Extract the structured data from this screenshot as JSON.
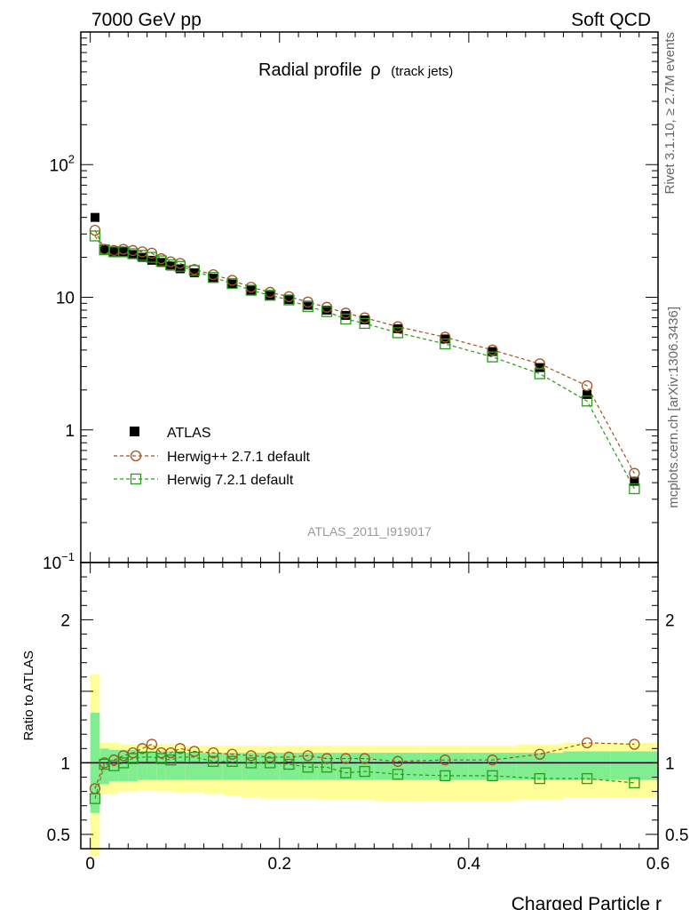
{
  "header": {
    "left": "7000 GeV pp",
    "right": "Soft QCD"
  },
  "title": {
    "main": "Radial profile",
    "symbol": "ρ",
    "suffix": "(track jets)"
  },
  "side_labels": {
    "rivet": "Rivet 3.1.10, ≥ 2.7M events",
    "mcplots": "mcplots.cern.ch [arXiv:1306.3436]"
  },
  "watermark": "ATLAS_2011_I919017",
  "legend": {
    "atlas": "ATLAS",
    "herwigpp": "Herwig++ 2.7.1 default",
    "herwig7": "Herwig 7.2.1 default"
  },
  "axes": {
    "xlabel": "Charged Particle r",
    "ratio_ylabel": "Ratio to ATLAS",
    "main_y_ticks": [
      {
        "label": "10",
        "sup": "2",
        "value": 100
      },
      {
        "label": "10",
        "sup": "",
        "value": 10
      },
      {
        "label": "1",
        "sup": "",
        "value": 1
      },
      {
        "label": "10",
        "sup": "−1",
        "value": 0.1
      }
    ],
    "ratio_y_ticks": [
      {
        "label": "2",
        "value": 2
      },
      {
        "label": "1",
        "value": 1
      },
      {
        "label": "0.5",
        "value": 0.5
      }
    ],
    "x_ticks": [
      {
        "label": "0",
        "value": 0
      },
      {
        "label": "0.2",
        "value": 0.2
      },
      {
        "label": "0.4",
        "value": 0.4
      },
      {
        "label": "0.6",
        "value": 0.6
      }
    ]
  },
  "colors": {
    "atlas": "#000000",
    "herwigpp": "#a0521e",
    "herwig7": "#2a9a1a",
    "band_inner": "#80ee90",
    "band_outer": "#ffff99"
  },
  "chart_data": {
    "type": "scatter",
    "xlim": [
      -0.01,
      0.6
    ],
    "ylim_main": [
      0.1,
      1000
    ],
    "ylim_ratio": [
      0.4,
      2.4
    ],
    "y_scale": "log",
    "x": [
      0.005,
      0.015,
      0.025,
      0.035,
      0.045,
      0.055,
      0.065,
      0.075,
      0.085,
      0.095,
      0.11,
      0.13,
      0.15,
      0.17,
      0.19,
      0.21,
      0.23,
      0.25,
      0.27,
      0.29,
      0.325,
      0.375,
      0.425,
      0.475,
      0.525,
      0.575
    ],
    "x_err": [
      0.005,
      0.005,
      0.005,
      0.005,
      0.005,
      0.005,
      0.005,
      0.005,
      0.005,
      0.005,
      0.01,
      0.01,
      0.01,
      0.01,
      0.01,
      0.01,
      0.01,
      0.01,
      0.01,
      0.01,
      0.025,
      0.025,
      0.025,
      0.025,
      0.025,
      0.025
    ],
    "series": [
      {
        "name": "ATLAS",
        "values": [
          40,
          23,
          22,
          22,
          21,
          20,
          19,
          18.3,
          17.2,
          16.4,
          15.3,
          13.9,
          12.6,
          11.3,
          10.3,
          9.6,
          8.7,
          8.0,
          7.3,
          6.75,
          5.8,
          4.85,
          3.9,
          2.95,
          1.85,
          0.41
        ],
        "ratio": [
          1,
          1,
          1,
          1,
          1,
          1,
          1,
          1,
          1,
          1,
          1,
          1,
          1,
          1,
          1,
          1,
          1,
          1,
          1,
          1,
          1,
          1,
          1,
          1,
          1,
          1
        ],
        "band_inner": [
          [
            0.65,
            1.35
          ],
          [
            0.85,
            1.1
          ],
          [
            0.87,
            1.09
          ],
          [
            0.87,
            1.09
          ],
          [
            0.87,
            1.09
          ],
          [
            0.88,
            1.08
          ],
          [
            0.88,
            1.08
          ],
          [
            0.88,
            1.08
          ],
          [
            0.88,
            1.08
          ],
          [
            0.88,
            1.08
          ],
          [
            0.88,
            1.07
          ],
          [
            0.88,
            1.07
          ],
          [
            0.88,
            1.07
          ],
          [
            0.88,
            1.07
          ],
          [
            0.88,
            1.07
          ],
          [
            0.88,
            1.07
          ],
          [
            0.88,
            1.07
          ],
          [
            0.88,
            1.07
          ],
          [
            0.88,
            1.07
          ],
          [
            0.88,
            1.07
          ],
          [
            0.88,
            1.07
          ],
          [
            0.88,
            1.07
          ],
          [
            0.88,
            1.07
          ],
          [
            0.88,
            1.07
          ],
          [
            0.88,
            1.08
          ],
          [
            0.88,
            1.08
          ]
        ],
        "band_outer": [
          [
            0.35,
            1.62
          ],
          [
            0.78,
            1.14
          ],
          [
            0.78,
            1.14
          ],
          [
            0.8,
            1.13
          ],
          [
            0.8,
            1.13
          ],
          [
            0.81,
            1.13
          ],
          [
            0.81,
            1.13
          ],
          [
            0.8,
            1.13
          ],
          [
            0.8,
            1.13
          ],
          [
            0.79,
            1.13
          ],
          [
            0.79,
            1.12
          ],
          [
            0.78,
            1.12
          ],
          [
            0.77,
            1.12
          ],
          [
            0.76,
            1.12
          ],
          [
            0.75,
            1.12
          ],
          [
            0.75,
            1.12
          ],
          [
            0.75,
            1.12
          ],
          [
            0.74,
            1.12
          ],
          [
            0.74,
            1.12
          ],
          [
            0.74,
            1.12
          ],
          [
            0.73,
            1.12
          ],
          [
            0.73,
            1.12
          ],
          [
            0.73,
            1.12
          ],
          [
            0.74,
            1.13
          ],
          [
            0.76,
            1.14
          ],
          [
            0.76,
            1.14
          ]
        ]
      },
      {
        "name": "Herwig++ 2.7.1 default",
        "values": [
          32,
          23,
          22.5,
          23,
          22.5,
          22,
          21.5,
          19.5,
          18.5,
          18,
          16.2,
          14.8,
          13.4,
          11.9,
          10.9,
          10.1,
          9.2,
          8.4,
          7.6,
          7.0,
          6.0,
          5.0,
          4.0,
          3.15,
          2.15,
          0.47
        ],
        "ratio": [
          0.82,
          1.0,
          1.02,
          1.05,
          1.07,
          1.1,
          1.13,
          1.07,
          1.07,
          1.1,
          1.08,
          1.07,
          1.06,
          1.05,
          1.04,
          1.04,
          1.05,
          1.03,
          1.03,
          1.03,
          1.01,
          1.02,
          1.02,
          1.06,
          1.14,
          1.13
        ]
      },
      {
        "name": "Herwig 7.2.1 default",
        "values": [
          29,
          22.8,
          22,
          22,
          21.3,
          20.7,
          20,
          18.8,
          17.6,
          17.1,
          15.9,
          14.1,
          12.7,
          11.3,
          10.35,
          9.55,
          8.5,
          7.8,
          6.85,
          6.35,
          5.4,
          4.45,
          3.55,
          2.65,
          1.65,
          0.36
        ],
        "ratio": [
          0.75,
          0.99,
          0.98,
          1.0,
          1.03,
          1.04,
          1.04,
          1.03,
          1.02,
          1.04,
          1.04,
          1.01,
          1.01,
          1.0,
          1.0,
          0.99,
          0.97,
          0.97,
          0.93,
          0.94,
          0.92,
          0.91,
          0.91,
          0.89,
          0.89,
          0.86
        ]
      }
    ]
  }
}
